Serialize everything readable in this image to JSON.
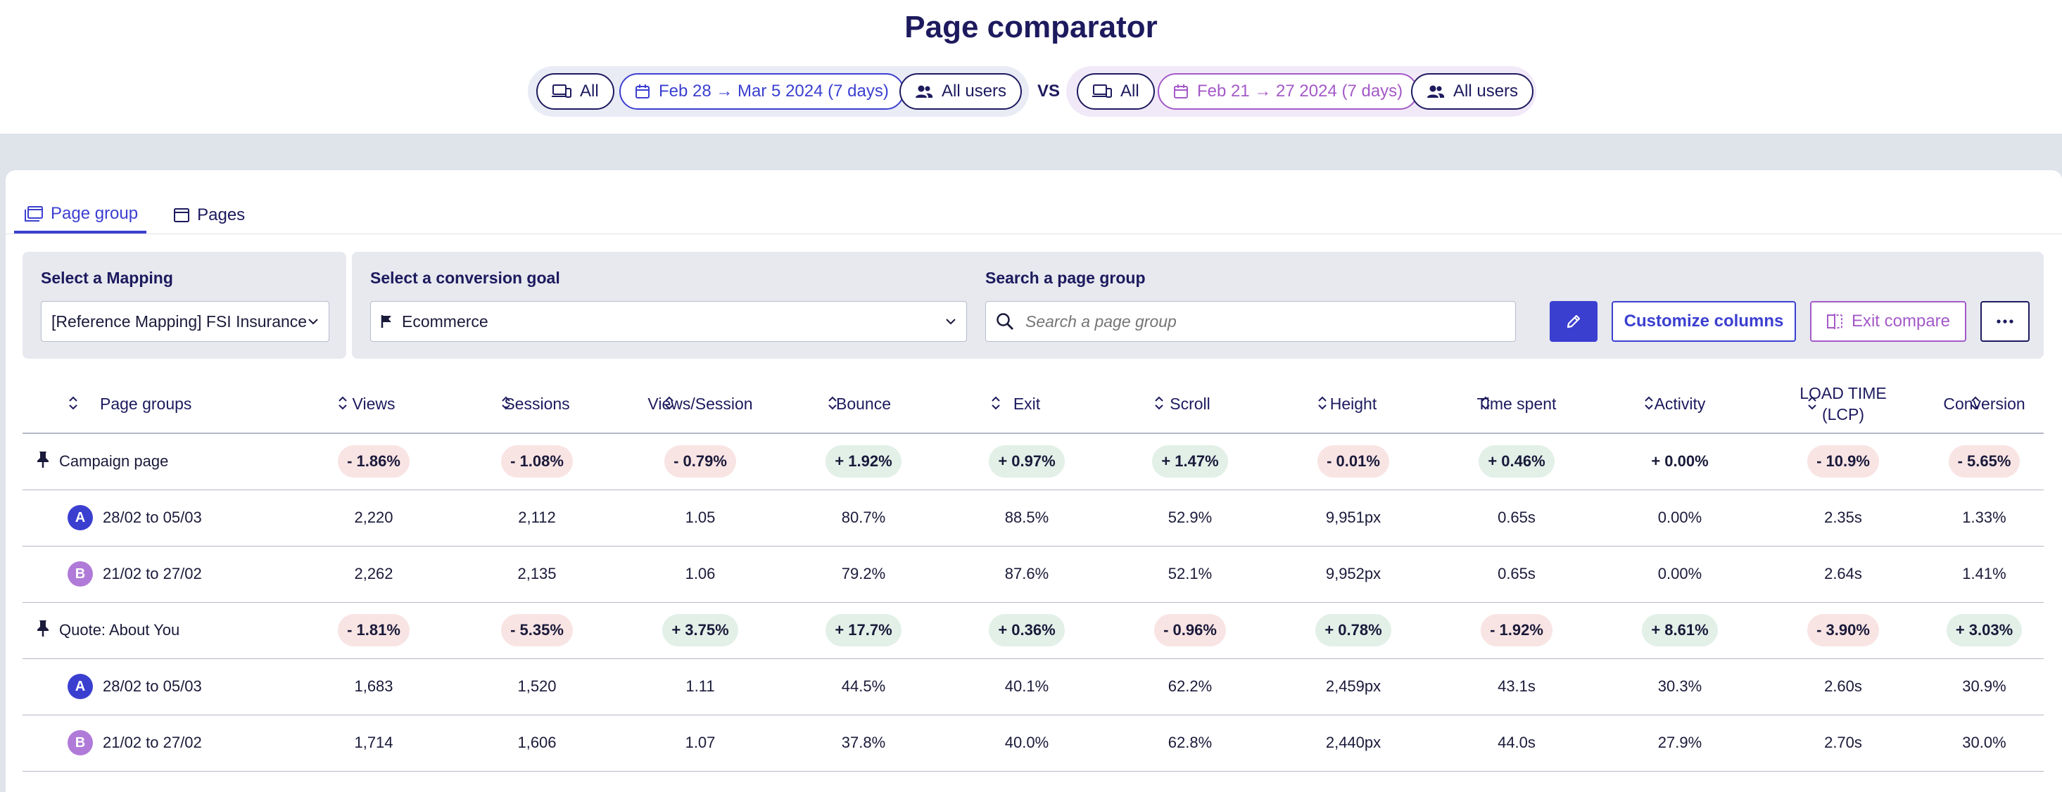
{
  "header": {
    "title": "Page comparator",
    "compare_a": {
      "device": "All",
      "date_range": "Feb 28 → Mar 5 2024 (7 days)",
      "segment": "All users"
    },
    "vs_label": "VS",
    "compare_b": {
      "device": "All",
      "date_range": "Feb 21 → 27 2024 (7 days)",
      "segment": "All users"
    },
    "colors": {
      "period_a": "#3b3fd0",
      "period_b": "#a45ac8",
      "navy": "#1d1a5e"
    }
  },
  "tabs": [
    {
      "label": "Page group",
      "icon": "page-group-icon",
      "active": true
    },
    {
      "label": "Pages",
      "icon": "page-icon",
      "active": false
    }
  ],
  "filters": {
    "mapping_label": "Select a Mapping",
    "mapping_value": "[Reference Mapping] FSI Insurance",
    "goal_label": "Select a conversion goal",
    "goal_value": "Ecommerce",
    "search_label": "Search a page group",
    "search_placeholder": "Search a page group",
    "customize_label": "Customize columns",
    "exit_label": "Exit compare"
  },
  "table": {
    "columns": [
      "Page groups",
      "Views",
      "Sessions",
      "Views/Session",
      "Bounce",
      "Exit",
      "Scroll",
      "Height",
      "Time spent",
      "Activity",
      "LOAD TIME (LCP)",
      "Conversion"
    ],
    "groups": [
      {
        "name": "Campaign page",
        "deltas": [
          {
            "text": "- 1.86%",
            "tone": "neg"
          },
          {
            "text": "- 1.08%",
            "tone": "neg"
          },
          {
            "text": "- 0.79%",
            "tone": "neg"
          },
          {
            "text": "+ 1.92%",
            "tone": "pos"
          },
          {
            "text": "+ 0.97%",
            "tone": "pos"
          },
          {
            "text": "+ 1.47%",
            "tone": "pos"
          },
          {
            "text": "- 0.01%",
            "tone": "neg"
          },
          {
            "text": "+ 0.46%",
            "tone": "pos"
          },
          {
            "text": "+ 0.00%",
            "tone": "neu"
          },
          {
            "text": "- 10.9%",
            "tone": "neg"
          },
          {
            "text": "- 5.65%",
            "tone": "neg"
          }
        ],
        "periods": [
          {
            "badge": "A",
            "label": "28/02 to 05/03",
            "values": [
              "2,220",
              "2,112",
              "1.05",
              "80.7%",
              "88.5%",
              "52.9%",
              "9,951px",
              "0.65s",
              "0.00%",
              "2.35s",
              "1.33%"
            ]
          },
          {
            "badge": "B",
            "label": "21/02 to 27/02",
            "values": [
              "2,262",
              "2,135",
              "1.06",
              "79.2%",
              "87.6%",
              "52.1%",
              "9,952px",
              "0.65s",
              "0.00%",
              "2.64s",
              "1.41%"
            ]
          }
        ]
      },
      {
        "name": "Quote: About You",
        "deltas": [
          {
            "text": "- 1.81%",
            "tone": "neg"
          },
          {
            "text": "- 5.35%",
            "tone": "neg"
          },
          {
            "text": "+ 3.75%",
            "tone": "pos"
          },
          {
            "text": "+ 17.7%",
            "tone": "pos"
          },
          {
            "text": "+ 0.36%",
            "tone": "pos"
          },
          {
            "text": "- 0.96%",
            "tone": "neg"
          },
          {
            "text": "+ 0.78%",
            "tone": "pos"
          },
          {
            "text": "- 1.92%",
            "tone": "neg"
          },
          {
            "text": "+ 8.61%",
            "tone": "pos"
          },
          {
            "text": "- 3.90%",
            "tone": "neg"
          },
          {
            "text": "+ 3.03%",
            "tone": "pos"
          }
        ],
        "periods": [
          {
            "badge": "A",
            "label": "28/02 to 05/03",
            "values": [
              "1,683",
              "1,520",
              "1.11",
              "44.5%",
              "40.1%",
              "62.2%",
              "2,459px",
              "43.1s",
              "30.3%",
              "2.60s",
              "30.9%"
            ]
          },
          {
            "badge": "B",
            "label": "21/02 to 27/02",
            "values": [
              "1,714",
              "1,606",
              "1.07",
              "37.8%",
              "40.0%",
              "62.8%",
              "2,440px",
              "44.0s",
              "27.9%",
              "2.70s",
              "30.0%"
            ]
          }
        ]
      }
    ]
  }
}
